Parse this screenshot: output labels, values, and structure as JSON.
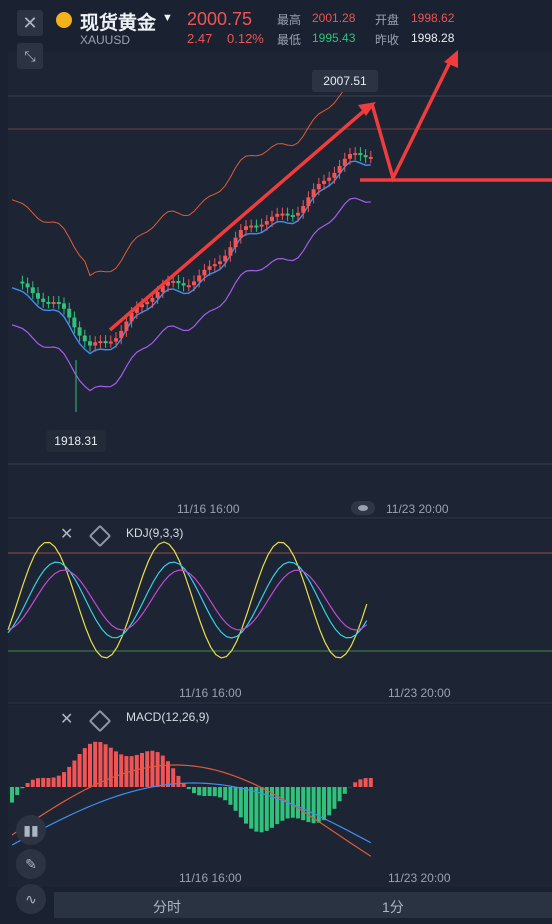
{
  "header": {
    "symbol_name": "现货黄金",
    "symbol_code": "XAUUSD",
    "last_price": "2000.75",
    "change": "2.47",
    "change_pct": "0.12%",
    "high_label": "最高",
    "high_value": "2001.28",
    "low_label": "最低",
    "low_value": "1995.43",
    "open_label": "开盘",
    "open_value": "1998.62",
    "prev_close_label": "昨收",
    "prev_close_value": "1998.28"
  },
  "main_chart": {
    "max_callout": "2007.51",
    "min_callout": "1918.31",
    "time_labels": [
      "11/16 16:00",
      "11/23 20:00"
    ]
  },
  "kdj": {
    "label": "KDJ(9,3,3)",
    "time_labels": [
      "11/16 16:00",
      "11/23 20:00"
    ]
  },
  "macd": {
    "label": "MACD(12,26,9)",
    "time_labels": [
      "11/16 16:00",
      "11/23 20:00"
    ]
  },
  "bottom_tabs": [
    "分时",
    "1分"
  ],
  "colors": {
    "up": "#f05454",
    "down": "#30c27a",
    "bg": "#1a2130"
  }
}
